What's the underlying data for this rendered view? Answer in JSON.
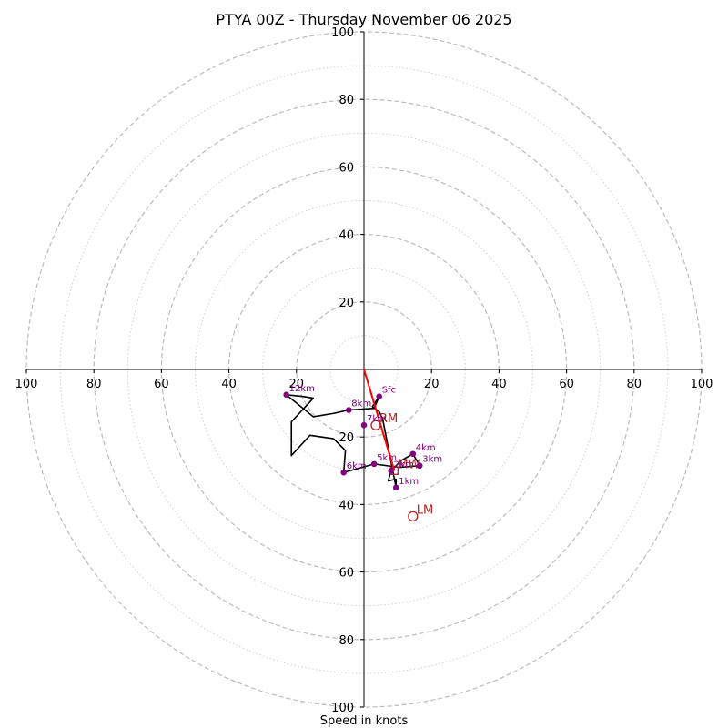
{
  "chart_data": {
    "type": "hodograph",
    "title": "PTYA 00Z - Thursday November 06 2025",
    "xlabel": "Speed in knots",
    "rmax": 100,
    "ring_step_major": 20,
    "ring_step_minor": 10,
    "tick_labels": {
      "x": [
        "100",
        "80",
        "60",
        "40",
        "20",
        "20",
        "40",
        "60",
        "80",
        "100"
      ],
      "y": [
        "100",
        "80",
        "60",
        "40",
        "20",
        "20",
        "40",
        "60",
        "80",
        "100"
      ]
    },
    "hodograph": {
      "u": [
        4.5,
        2.5,
        4.5,
        5.5,
        9.5,
        9.5,
        7.2,
        8,
        11,
        14.5,
        16.5,
        10.5,
        3,
        -6,
        -5.5,
        -9,
        -16,
        -21.5,
        -21.5,
        -15,
        -18,
        -23,
        -15,
        -9,
        -4.5,
        3,
        4.5
      ],
      "v": [
        -8,
        -11,
        -12.5,
        -14.5,
        -35,
        -32.5,
        -33,
        -30,
        -27,
        -25,
        -28.5,
        -29,
        -28,
        -30.5,
        -24,
        -20.5,
        -19.5,
        -25.5,
        -15.5,
        -8.5,
        -8,
        -7.5,
        -14,
        -13,
        -12,
        -11.5,
        -8
      ],
      "line_color": "#000000"
    },
    "height_markers": [
      {
        "label": "Sfc",
        "u": 4.5,
        "v": -8
      },
      {
        "label": "1km",
        "u": 9.5,
        "v": -35
      },
      {
        "label": "2km",
        "u": 8,
        "v": -30
      },
      {
        "label": "3km",
        "u": 16.5,
        "v": -28.5
      },
      {
        "label": "4km",
        "u": 14.5,
        "v": -25
      },
      {
        "label": "5km",
        "u": 3,
        "v": -28
      },
      {
        "label": "6km",
        "u": -6,
        "v": -30.5
      },
      {
        "label": "7km",
        "u": 0,
        "v": -16.5
      },
      {
        "label": "8km",
        "u": -4.5,
        "v": -12
      },
      {
        "label": "12km",
        "u": -23,
        "v": -7.5
      }
    ],
    "marker_color": "#800080",
    "storm_motion": {
      "color": "#b22222",
      "line_color": "#ff0000",
      "line": {
        "u1": 0,
        "v1": 0,
        "u2": 9,
        "v2": -30
      },
      "markers": [
        {
          "label": "RM",
          "u": 3.5,
          "v": -16.5,
          "shape": "circle"
        },
        {
          "label": "LM",
          "u": 14.5,
          "v": -43.5,
          "shape": "circle"
        },
        {
          "label": "MW",
          "u": 9,
          "v": -30,
          "shape": "square"
        }
      ]
    }
  }
}
